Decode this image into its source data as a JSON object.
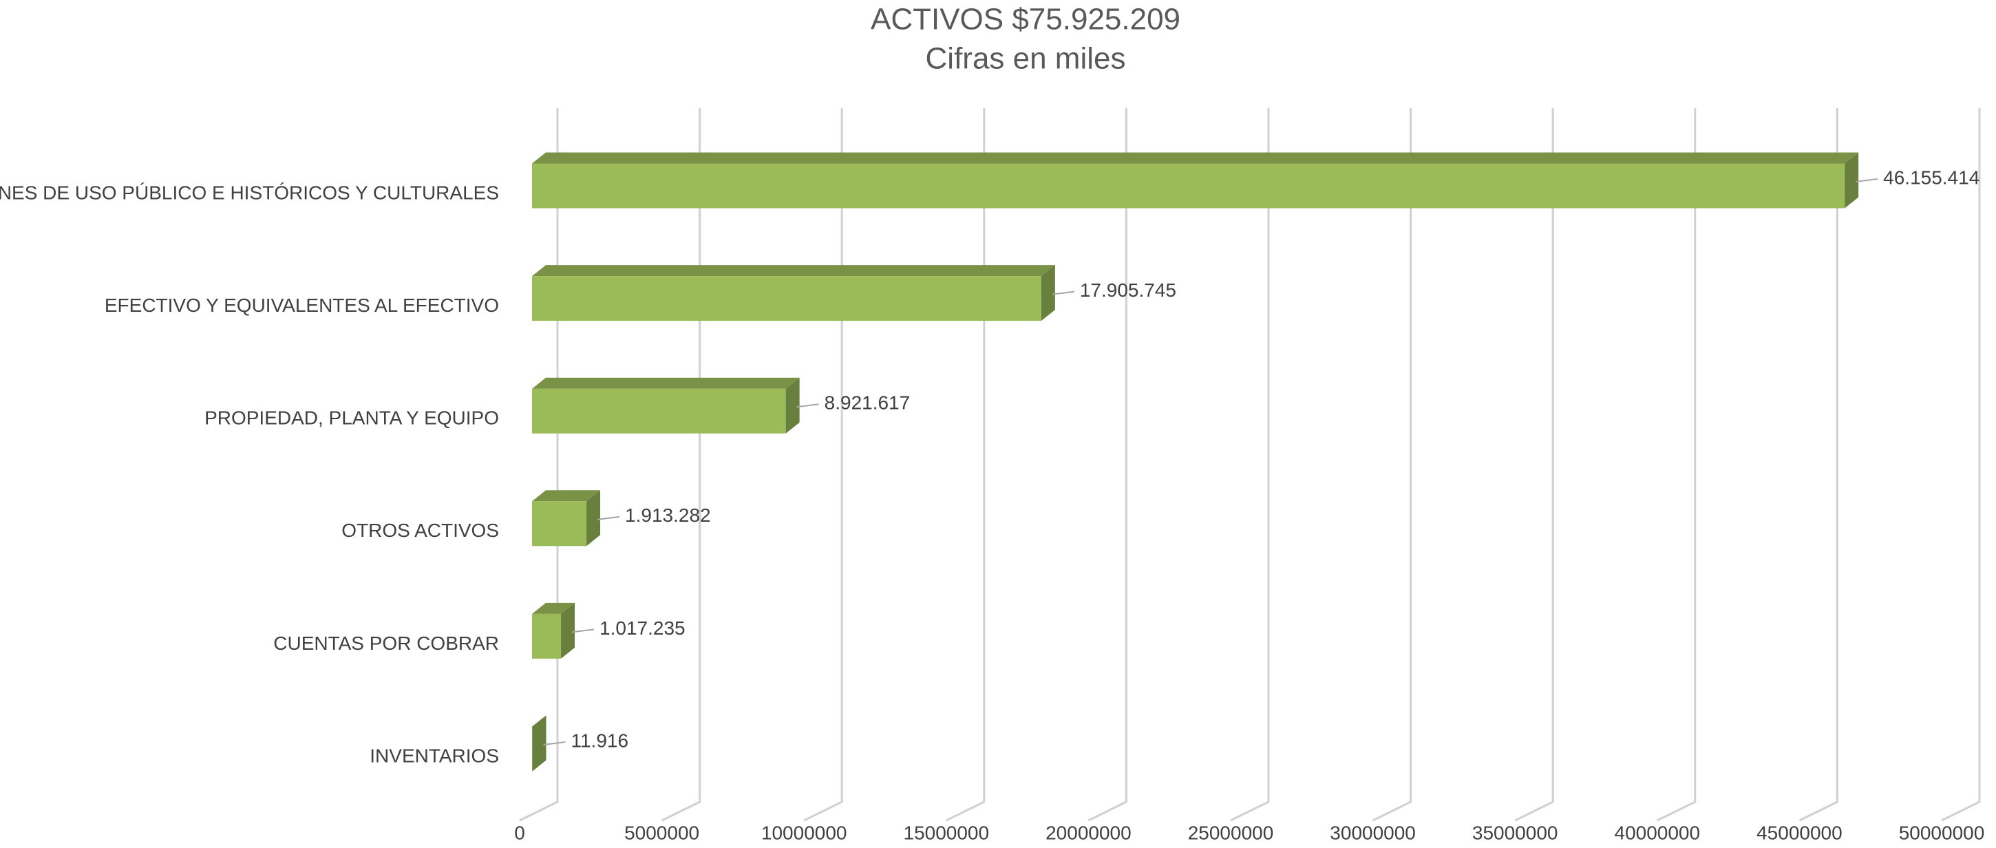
{
  "chart_data": {
    "type": "bar3d_horizontal",
    "title": "ACTIVOS $75.925.209",
    "subtitle": "Cifras en miles",
    "categories": [
      "BIENES DE USO PÚBLICO E HISTÓRICOS Y CULTURALES",
      "EFECTIVO Y EQUIVALENTES AL EFECTIVO",
      "PROPIEDAD, PLANTA Y EQUIPO",
      "OTROS ACTIVOS",
      "CUENTAS POR COBRAR",
      "INVENTARIOS"
    ],
    "values": [
      46155414,
      17905745,
      8921617,
      1913282,
      1017235,
      11916
    ],
    "value_labels": [
      "46.155.414",
      "17.905.745",
      "8.921.617",
      "1.913.282",
      "1.017.235",
      "11.916"
    ],
    "color": "#9bbb59",
    "xlim": [
      0,
      50000000
    ],
    "xticks": [
      0,
      5000000,
      10000000,
      15000000,
      20000000,
      25000000,
      30000000,
      35000000,
      40000000,
      45000000,
      50000000
    ],
    "grid": true
  }
}
